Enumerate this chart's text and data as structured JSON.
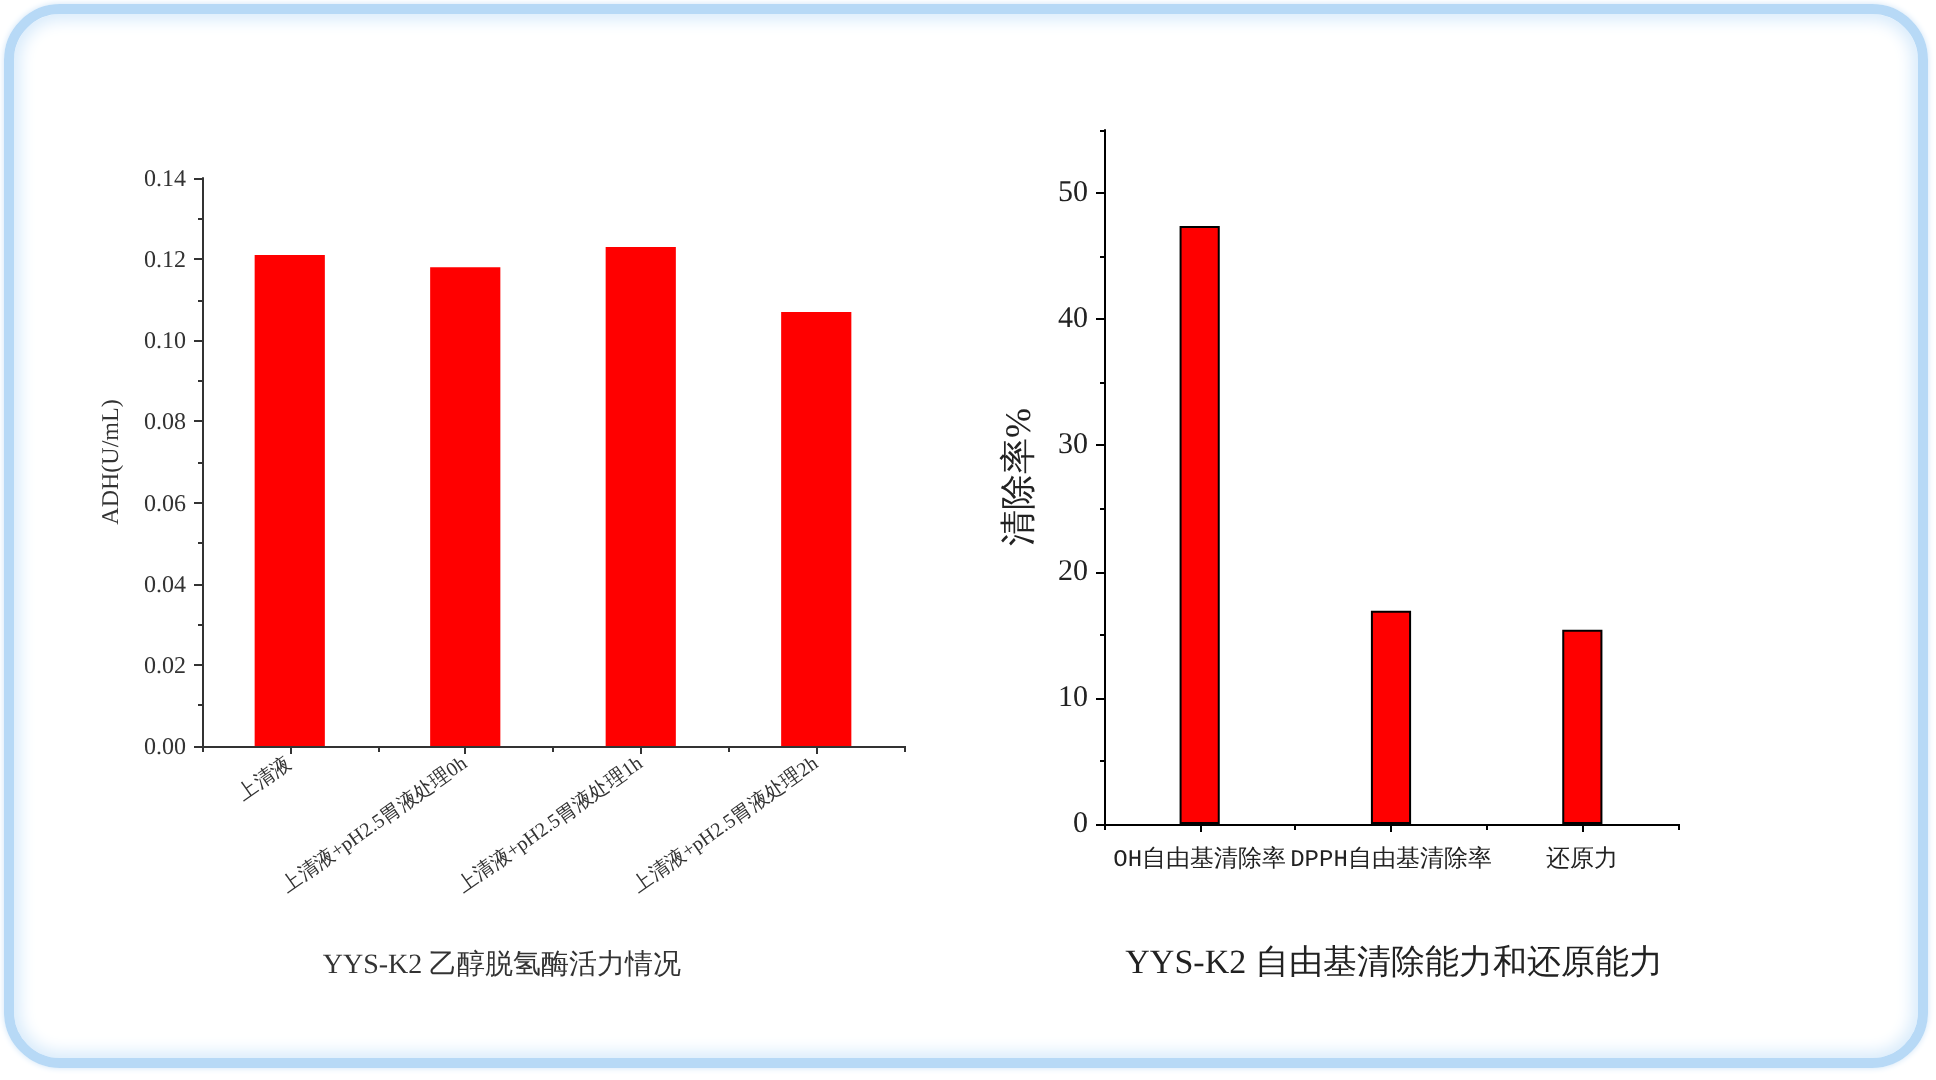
{
  "chart_data": [
    {
      "type": "bar",
      "title": "YYS-K2 乙醇脱氢酶活力情况",
      "ylabel": "ADH(U/mL)",
      "categories": [
        "上清液",
        "上清液+pH2.5胃液处理0h",
        "上清液+pH2.5胃液处理1h",
        "上清液+pH2.5胃液处理2h"
      ],
      "values": [
        0.121,
        0.118,
        0.123,
        0.107
      ],
      "color": "#ff0000",
      "ylim": [
        0,
        0.14
      ],
      "yticks": [
        {
          "value": 0,
          "label": "0.00"
        },
        {
          "value": 0.01,
          "label": null
        },
        {
          "value": 0.02,
          "label": "0.02"
        },
        {
          "value": 0.03,
          "label": null
        },
        {
          "value": 0.04,
          "label": "0.04"
        },
        {
          "value": 0.05,
          "label": null
        },
        {
          "value": 0.06,
          "label": "0.06"
        },
        {
          "value": 0.07,
          "label": null
        },
        {
          "value": 0.08,
          "label": "0.08"
        },
        {
          "value": 0.09,
          "label": null
        },
        {
          "value": 0.1,
          "label": "0.10"
        },
        {
          "value": 0.11,
          "label": null
        },
        {
          "value": 0.12,
          "label": "0.12"
        },
        {
          "value": 0.13,
          "label": null
        },
        {
          "value": 0.14,
          "label": "0.14"
        }
      ]
    },
    {
      "type": "bar",
      "title": "YYS-K2 自由基清除能力和还原能力",
      "ylabel": "清除率%",
      "categories": [
        "OH自由基清除率",
        "DPPH自由基清除率",
        "还原力"
      ],
      "values": [
        47.4,
        16.9,
        15.4
      ],
      "color": "#ff0000",
      "ylim": [
        0,
        55
      ],
      "yticks": [
        0,
        {
          "value": 5,
          "label": null
        },
        10,
        {
          "value": 15,
          "label": null
        },
        20,
        {
          "value": 25,
          "label": null
        },
        30,
        {
          "value": 35,
          "label": null
        },
        40,
        {
          "value": 45,
          "label": null
        },
        50,
        {
          "value": 55,
          "label": null
        }
      ]
    }
  ]
}
